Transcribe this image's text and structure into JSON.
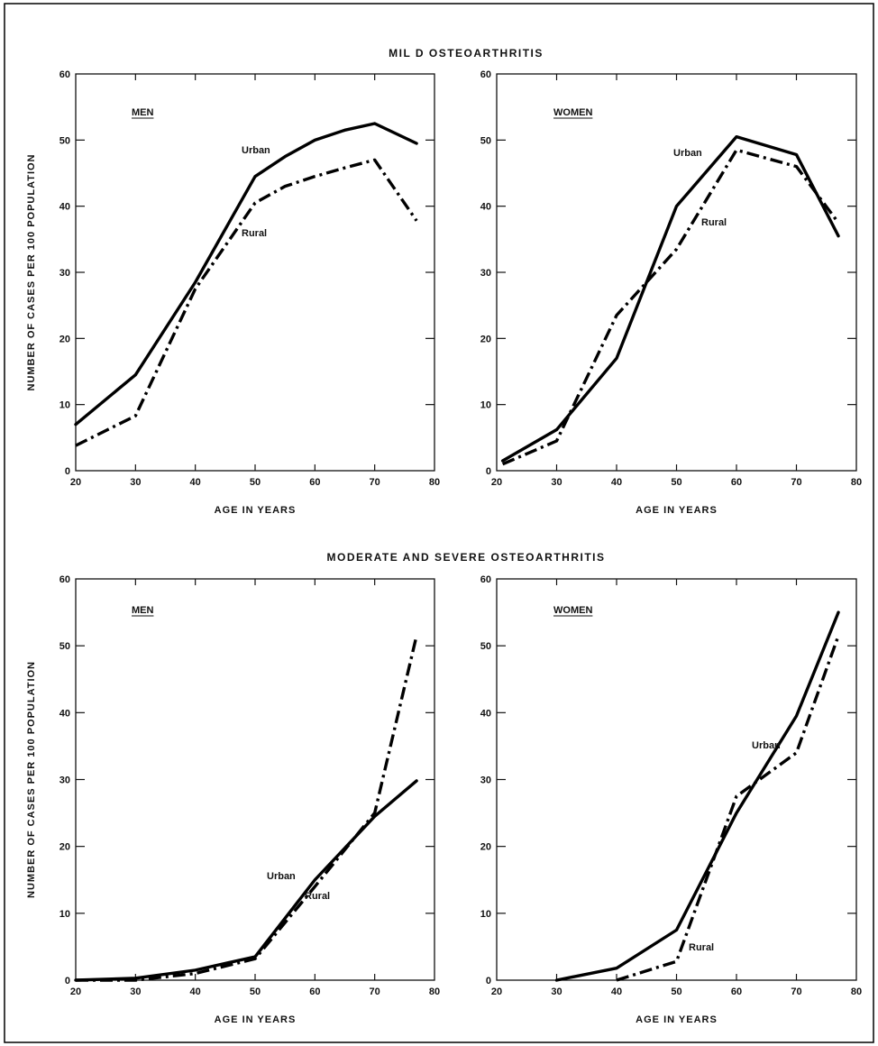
{
  "sections": {
    "mild": "MIL D  OSTEOARTHRITIS",
    "moderate": "MODERATE  AND  SEVERE  OSTEOARTHRITIS"
  },
  "line_color": "#000000",
  "chart_data": [
    {
      "type": "line",
      "panel": "MEN",
      "xlabel": "AGE  IN  YEARS",
      "ylabel": "NUMBER OF CASES PER 100 POPULATION",
      "xlim": [
        20,
        80
      ],
      "ylim": [
        0,
        60
      ],
      "xticks": [
        20,
        30,
        40,
        50,
        60,
        70,
        80
      ],
      "yticks": [
        0,
        10,
        20,
        30,
        40,
        50,
        60
      ],
      "series": [
        {
          "name": "Urban",
          "x": [
            20,
            30,
            40,
            50,
            55,
            60,
            65,
            70,
            77
          ],
          "y": [
            7,
            14.5,
            28.5,
            44.5,
            47.5,
            50,
            51.5,
            52.5,
            49.5
          ]
        },
        {
          "name": "Rural",
          "x": [
            20,
            30,
            40,
            50,
            55,
            60,
            65,
            70,
            77
          ],
          "y": [
            3.8,
            8.3,
            27.5,
            40.5,
            43,
            44.5,
            45.8,
            47,
            37.8
          ]
        }
      ]
    },
    {
      "type": "line",
      "panel": "WOMEN",
      "xlabel": "AGE  IN  YEARS",
      "ylabel": "",
      "xlim": [
        20,
        80
      ],
      "ylim": [
        0,
        60
      ],
      "xticks": [
        20,
        30,
        40,
        50,
        60,
        70,
        80
      ],
      "yticks": [
        0,
        10,
        20,
        30,
        40,
        50,
        60
      ],
      "series": [
        {
          "name": "Urban",
          "x": [
            21,
            30,
            40,
            50,
            60,
            70,
            77
          ],
          "y": [
            1.5,
            6.2,
            17,
            40,
            50.5,
            47.8,
            35.5
          ]
        },
        {
          "name": "Rural",
          "x": [
            21,
            30,
            40,
            50,
            60,
            70,
            77
          ],
          "y": [
            1,
            4.5,
            23.5,
            33.5,
            48.5,
            46,
            37.5
          ]
        }
      ]
    },
    {
      "type": "line",
      "panel": "MEN",
      "xlabel": "AGE  IN  YEARS",
      "ylabel": "NUMBER OF CASES PER 100 POPULATION",
      "xlim": [
        20,
        80
      ],
      "ylim": [
        0,
        60
      ],
      "xticks": [
        20,
        30,
        40,
        50,
        60,
        70,
        80
      ],
      "yticks": [
        0,
        10,
        20,
        30,
        40,
        50,
        60
      ],
      "series": [
        {
          "name": "Urban",
          "x": [
            20,
            30,
            40,
            50,
            60,
            70,
            77
          ],
          "y": [
            0,
            0.3,
            1.5,
            3.5,
            15,
            24.5,
            29.8
          ]
        },
        {
          "name": "Rural",
          "x": [
            20,
            30,
            40,
            50,
            60,
            70,
            77
          ],
          "y": [
            0,
            0,
            1,
            3.2,
            14,
            25,
            51.5
          ]
        }
      ]
    },
    {
      "type": "line",
      "panel": "WOMEN",
      "xlabel": "AGE  IN  YEARS",
      "ylabel": "",
      "xlim": [
        20,
        80
      ],
      "ylim": [
        0,
        60
      ],
      "xticks": [
        20,
        30,
        40,
        50,
        60,
        70,
        80
      ],
      "yticks": [
        0,
        10,
        20,
        30,
        40,
        50,
        60
      ],
      "series": [
        {
          "name": "Urban",
          "x": [
            30,
            40,
            50,
            60,
            70,
            77
          ],
          "y": [
            0,
            1.8,
            7.5,
            25,
            39.5,
            55
          ]
        },
        {
          "name": "Rural",
          "x": [
            40,
            50,
            60,
            70,
            77
          ],
          "y": [
            0,
            2.8,
            27.5,
            34,
            51.5
          ]
        }
      ]
    }
  ]
}
